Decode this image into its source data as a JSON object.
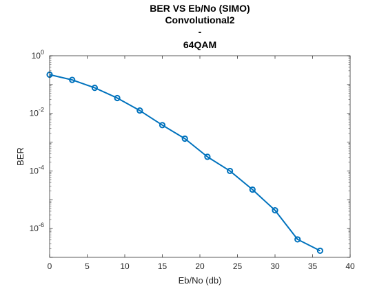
{
  "chart_data": {
    "type": "line",
    "title_lines": [
      "BER VS Eb/No (SIMO)",
      "Convolutional2",
      "-",
      "64QAM"
    ],
    "xlabel": "Eb/No (db)",
    "ylabel": "BER",
    "xlim": [
      0,
      40
    ],
    "ylim": [
      1e-07,
      1
    ],
    "yscale": "log",
    "xticks": [
      0,
      5,
      10,
      15,
      20,
      25,
      30,
      35,
      40
    ],
    "yticks": [
      {
        "value": 1,
        "base": "10",
        "exp": "0"
      },
      {
        "value": 0.01,
        "base": "10",
        "exp": "-2"
      },
      {
        "value": 0.0001,
        "base": "10",
        "exp": "-4"
      },
      {
        "value": 1e-06,
        "base": "10",
        "exp": "-6"
      }
    ],
    "grid": false,
    "series": [
      {
        "color": "#0072BD",
        "marker": "circle",
        "x": [
          0,
          3,
          6,
          9,
          12,
          15,
          18,
          21,
          24,
          27,
          30,
          33,
          36
        ],
        "y": [
          0.22,
          0.145,
          0.077,
          0.034,
          0.0125,
          0.0039,
          0.00132,
          0.00031,
          0.0001,
          2.25e-05,
          4.3e-06,
          4.2e-07,
          1.7e-07
        ]
      }
    ]
  }
}
